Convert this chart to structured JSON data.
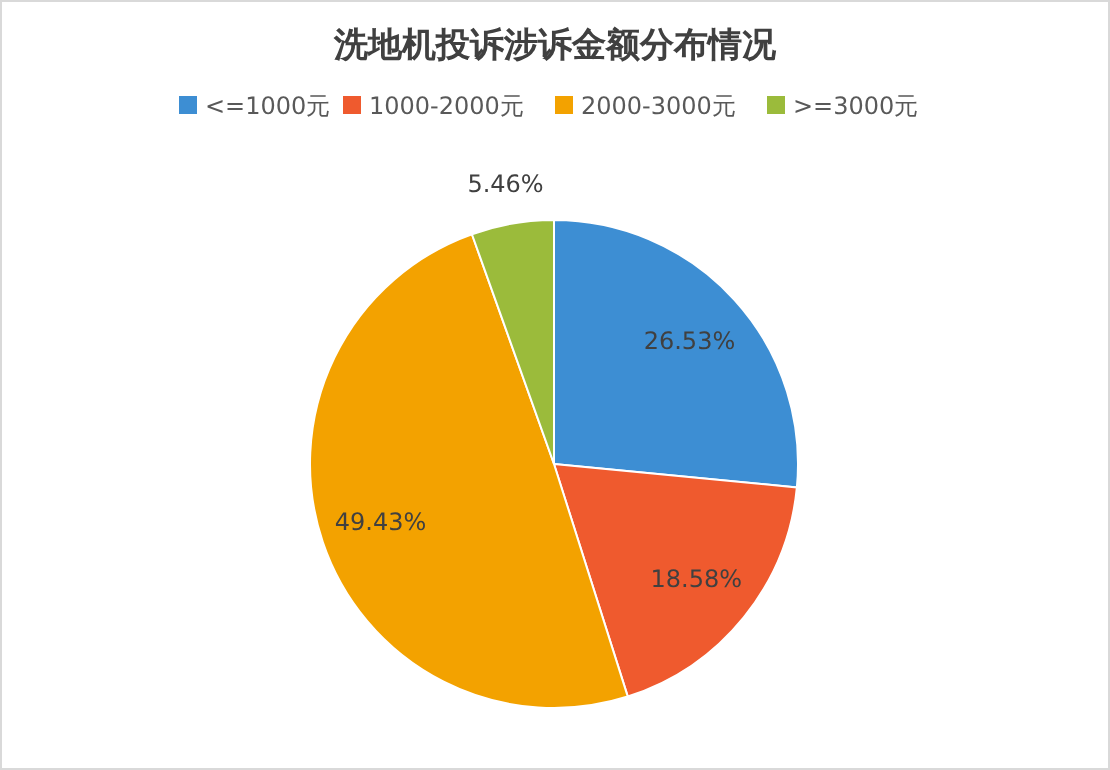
{
  "chart_data": {
    "type": "pie",
    "title": "洗地机投诉涉诉金额分布情况",
    "categories": [
      "<=1000元",
      "1000-2000元",
      "2000-3000元",
      ">=3000元"
    ],
    "values": [
      26.53,
      18.58,
      49.43,
      5.46
    ],
    "colors": [
      "#3d8ed3",
      "#ef5a2e",
      "#f3a200",
      "#9bbb3b"
    ],
    "value_labels": [
      "26.53%",
      "18.58%",
      "49.43%",
      "5.46%"
    ],
    "legend": "top"
  }
}
